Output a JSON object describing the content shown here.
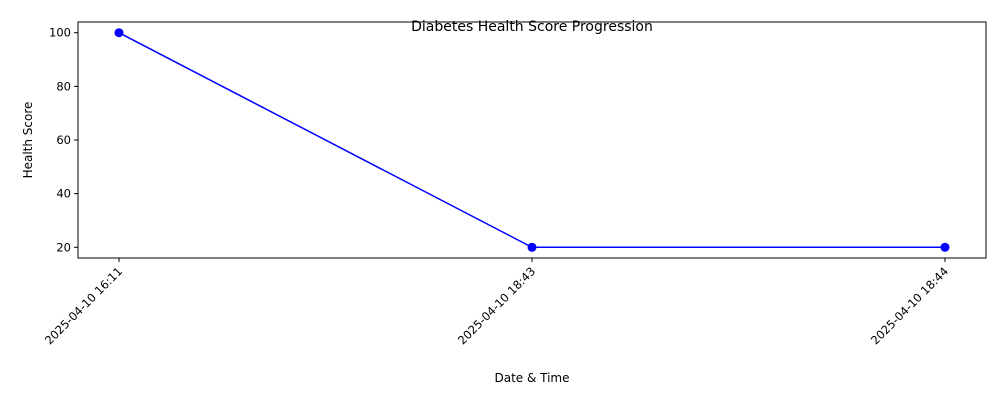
{
  "chart_data": {
    "type": "line",
    "title": "Diabetes Health Score Progression",
    "xlabel": "Date & Time",
    "ylabel": "Health Score",
    "x": [
      "2025-04-10 16:11",
      "2025-04-10 18:43",
      "2025-04-10 18:44"
    ],
    "series": [
      {
        "values": [
          100,
          20,
          20
        ],
        "color": "#0000ff",
        "marker": "circle"
      }
    ],
    "ylim": [
      16,
      104
    ],
    "yticks": [
      20,
      40,
      60,
      80,
      100
    ],
    "x_tick_rotation": 45,
    "grid": false,
    "legend": false
  }
}
